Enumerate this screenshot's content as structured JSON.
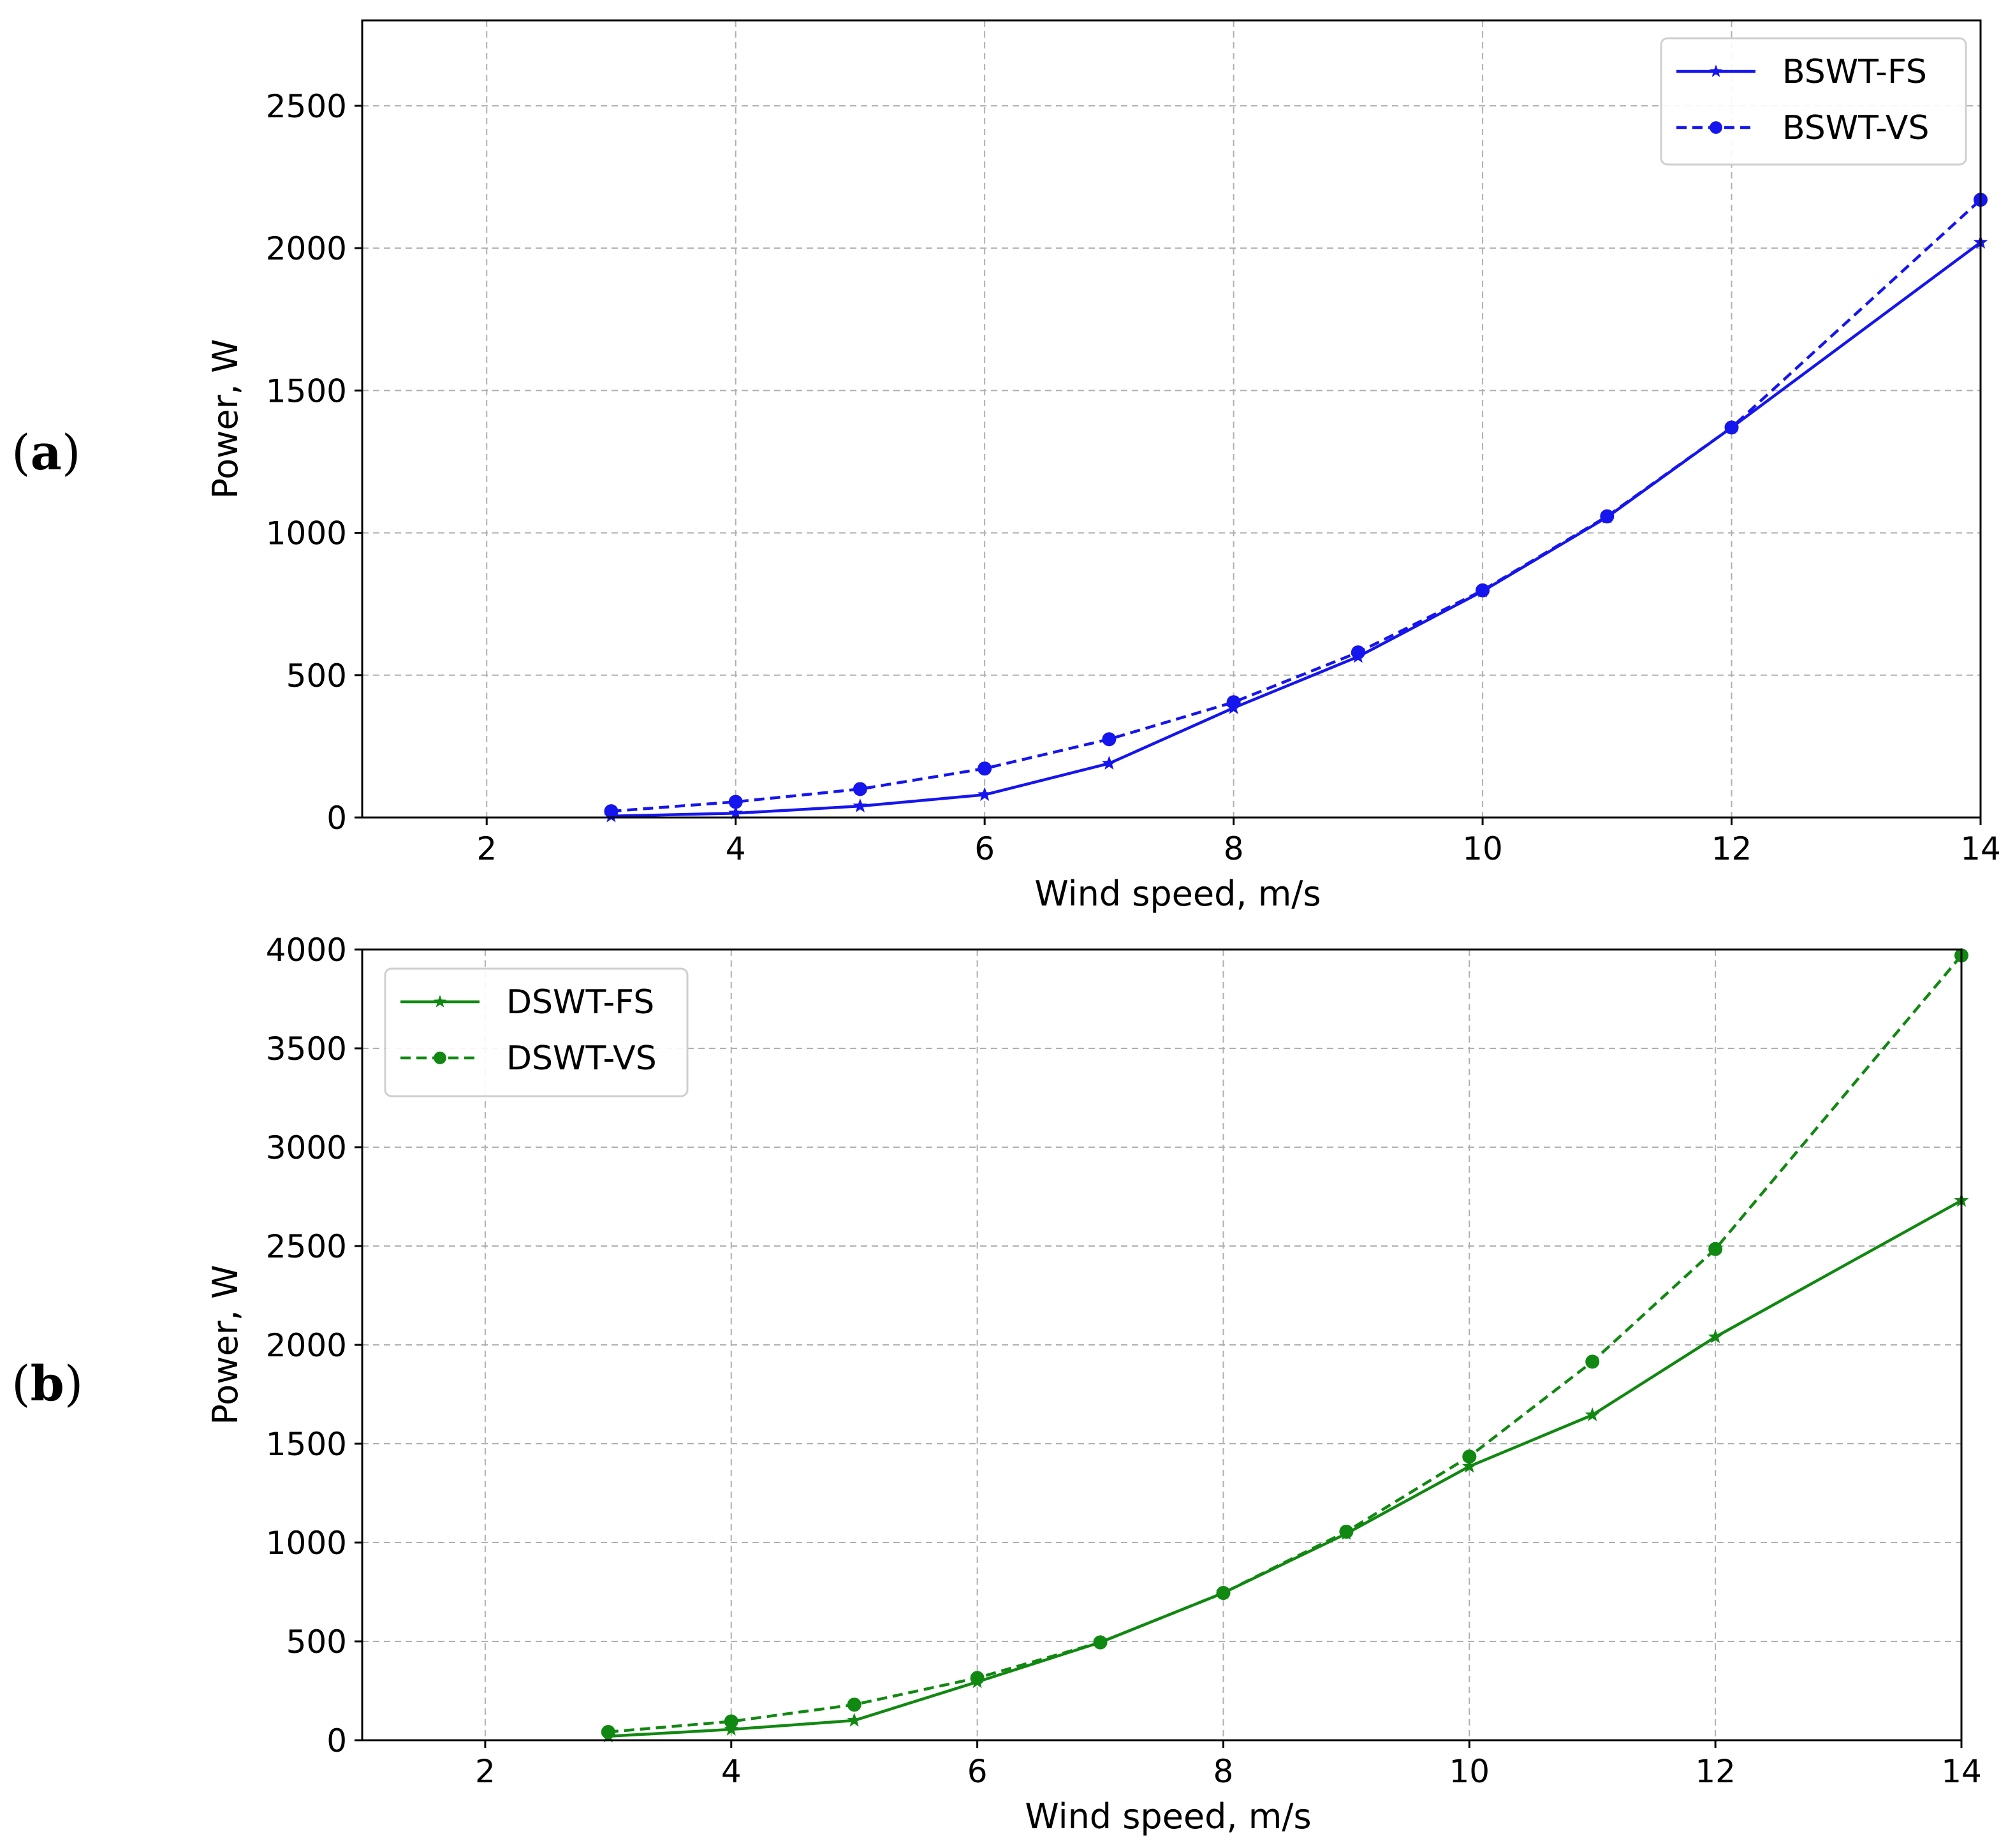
{
  "panels": [
    {
      "label": "a",
      "chart_data": {
        "type": "line",
        "xlabel": "Wind speed, m/s",
        "ylabel": "Power, W",
        "xlim": [
          1,
          14
        ],
        "ylim": [
          0,
          2800
        ],
        "xticks": [
          2,
          4,
          6,
          8,
          10,
          12,
          14
        ],
        "yticks": [
          0,
          500,
          1000,
          1500,
          2000,
          2500
        ],
        "grid": true,
        "legend_position": "top-right",
        "series": [
          {
            "name": "BSWT-FS",
            "color": "#1515ee",
            "line_style": "solid",
            "marker": "star",
            "x": [
              3,
              4,
              5,
              6,
              7,
              8,
              9,
              10,
              11,
              12,
              14
            ],
            "y": [
              5,
              15,
              40,
              80,
              190,
              385,
              565,
              795,
              1055,
              1370,
              2020
            ]
          },
          {
            "name": "BSWT-VS",
            "color": "#1515ee",
            "line_style": "dashed",
            "marker": "circle",
            "x": [
              3,
              4,
              5,
              6,
              7,
              8,
              9,
              10,
              11,
              12,
              14
            ],
            "y": [
              22,
              55,
              100,
              172,
              275,
              405,
              580,
              798,
              1058,
              1370,
              2170
            ]
          }
        ]
      }
    },
    {
      "label": "b",
      "chart_data": {
        "type": "line",
        "xlabel": "Wind speed, m/s",
        "ylabel": "Power, W",
        "xlim": [
          1,
          14
        ],
        "ylim": [
          0,
          4000
        ],
        "xticks": [
          2,
          4,
          6,
          8,
          10,
          12,
          14
        ],
        "yticks": [
          0,
          500,
          1000,
          1500,
          2000,
          2500,
          3000,
          3500,
          4000
        ],
        "grid": true,
        "legend_position": "top-left",
        "series": [
          {
            "name": "DSWT-FS",
            "color": "#118811",
            "line_style": "solid",
            "marker": "star",
            "x": [
              3,
              4,
              5,
              6,
              7,
              8,
              9,
              10,
              11,
              12,
              14
            ],
            "y": [
              20,
              55,
              100,
              295,
              495,
              745,
              1045,
              1385,
              1645,
              2040,
              2730
            ]
          },
          {
            "name": "DSWT-VS",
            "color": "#118811",
            "line_style": "dashed",
            "marker": "circle",
            "x": [
              3,
              4,
              5,
              6,
              7,
              8,
              9,
              10,
              11,
              12,
              14
            ],
            "y": [
              42,
              95,
              180,
              315,
              495,
              745,
              1055,
              1435,
              1915,
              2485,
              3970
            ]
          }
        ]
      }
    }
  ]
}
